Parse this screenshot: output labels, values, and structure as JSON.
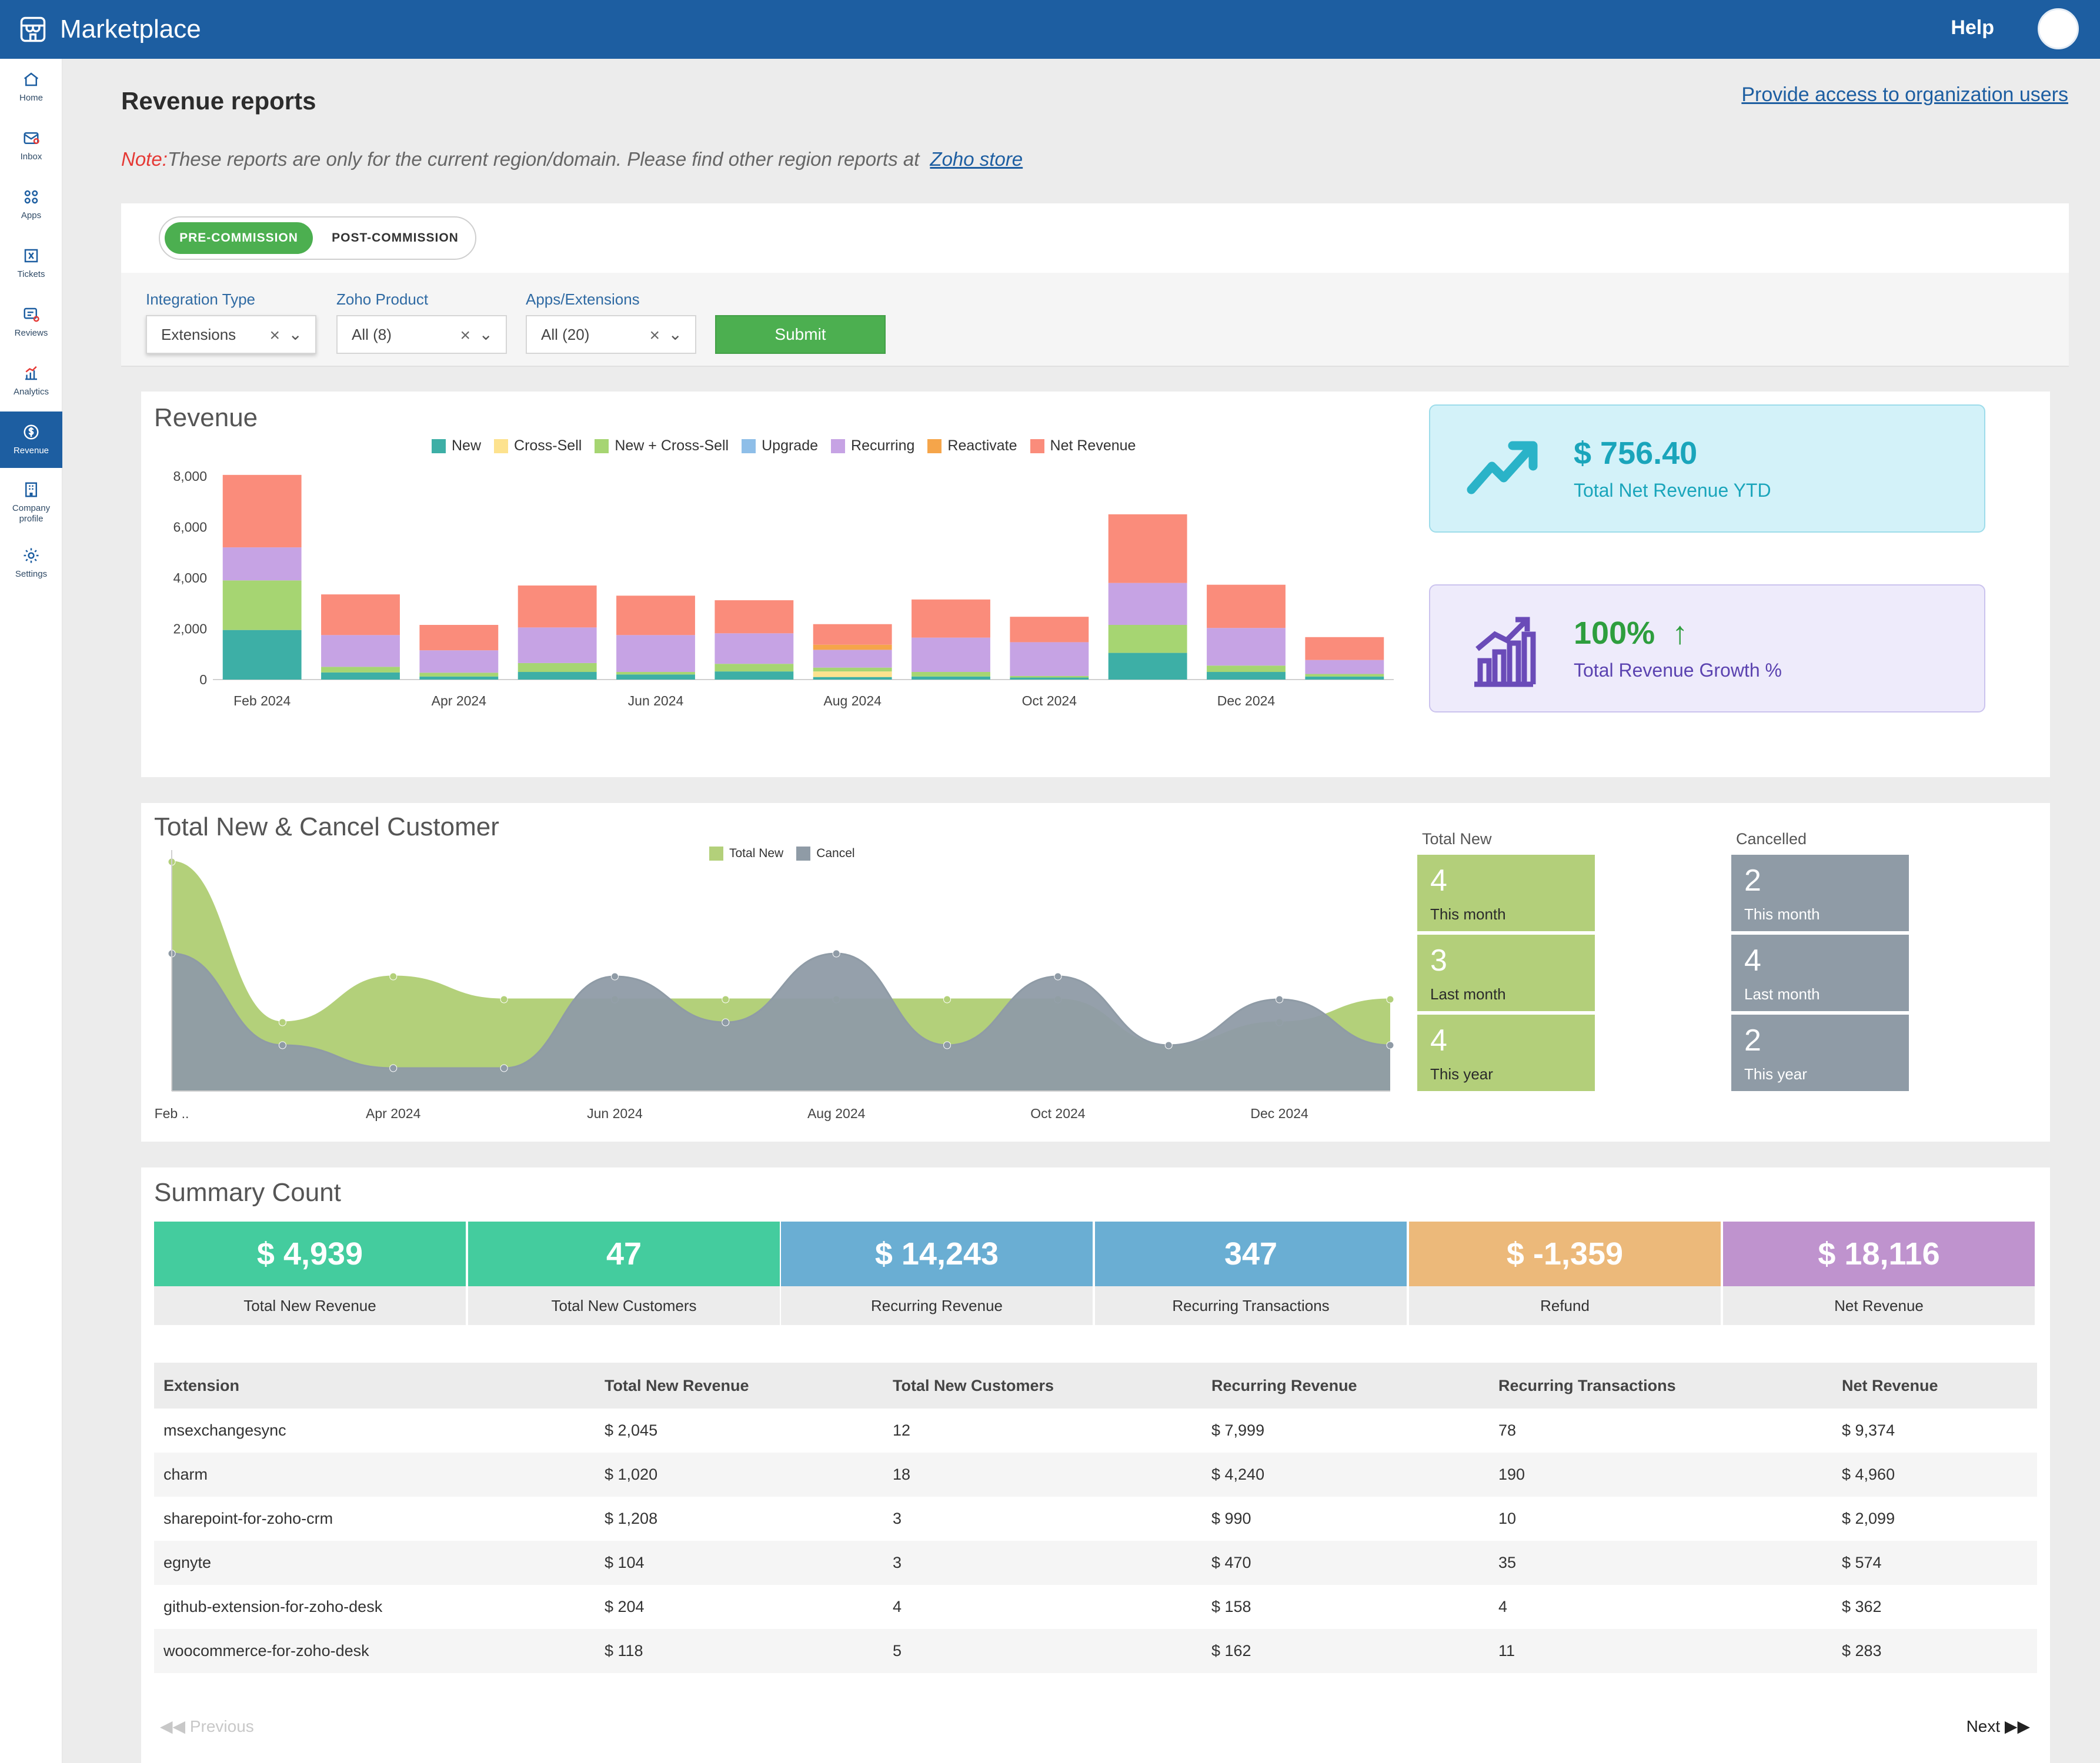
{
  "topbar": {
    "app_name": "Marketplace",
    "help": "Help"
  },
  "sidebar": {
    "items": [
      {
        "label": "Home",
        "icon": "home-icon"
      },
      {
        "label": "Inbox",
        "icon": "inbox-icon"
      },
      {
        "label": "Apps",
        "icon": "apps-icon"
      },
      {
        "label": "Tickets",
        "icon": "tickets-icon"
      },
      {
        "label": "Reviews",
        "icon": "reviews-icon"
      },
      {
        "label": "Analytics",
        "icon": "analytics-icon"
      },
      {
        "label": "Revenue",
        "icon": "revenue-icon",
        "active": true
      },
      {
        "label": "Company profile",
        "icon": "company-icon"
      },
      {
        "label": "Settings",
        "icon": "gear-icon"
      }
    ]
  },
  "header": {
    "title": "Revenue reports",
    "access_link": "Provide access to organization users",
    "note_label": "Note:",
    "note_text": "These reports are only for the current region/domain. Please find other region reports at",
    "store_link": "Zoho store"
  },
  "commission_toggle": {
    "active": "PRE-COMMISSION",
    "inactive": "POST-COMMISSION"
  },
  "filters": {
    "integration_type": {
      "label": "Integration Type",
      "value": "Extensions"
    },
    "zoho_product": {
      "label": "Zoho Product",
      "value": "All (8)"
    },
    "apps_extensions": {
      "label": "Apps/Extensions",
      "value": "All (20)"
    },
    "submit": "Submit"
  },
  "revenue_panel": {
    "title": "Revenue",
    "kpi_net": {
      "value": "$ 756.40",
      "label": "Total Net Revenue YTD"
    },
    "kpi_growth": {
      "value": "100%",
      "label": "Total Revenue Growth %"
    }
  },
  "customer_panel": {
    "title": "Total New & Cancel Customer",
    "total_new_heading": "Total New",
    "cancelled_heading": "Cancelled",
    "total_new": [
      {
        "value": "4",
        "label": "This month"
      },
      {
        "value": "3",
        "label": "Last month"
      },
      {
        "value": "4",
        "label": "This year"
      }
    ],
    "cancelled": [
      {
        "value": "2",
        "label": "This month"
      },
      {
        "value": "4",
        "label": "Last month"
      },
      {
        "value": "2",
        "label": "This year"
      }
    ]
  },
  "summary": {
    "title": "Summary Count",
    "boxes": [
      {
        "value": "$ 4,939",
        "label": "Total New Revenue",
        "color": "#44cc9e"
      },
      {
        "value": "47",
        "label": "Total New Customers",
        "color": "#44cc9e"
      },
      {
        "value": "$ 14,243",
        "label": "Recurring Revenue",
        "color": "#6aaed3"
      },
      {
        "value": "347",
        "label": "Recurring Transactions",
        "color": "#6aaed3"
      },
      {
        "value": "$ -1,359",
        "label": "Refund",
        "color": "#ecb97a"
      },
      {
        "value": "$ 18,116",
        "label": "Net Revenue",
        "color": "#bf93ce"
      }
    ],
    "table": {
      "headers": [
        "Extension",
        "Total New Revenue",
        "Total New Customers",
        "Recurring Revenue",
        "Recurring Transactions",
        "Net Revenue"
      ],
      "rows": [
        [
          "msexchangesync",
          "$ 2,045",
          "12",
          "$ 7,999",
          "78",
          "$ 9,374"
        ],
        [
          "charm",
          "$ 1,020",
          "18",
          "$ 4,240",
          "190",
          "$ 4,960"
        ],
        [
          "sharepoint-for-zoho-crm",
          "$ 1,208",
          "3",
          "$ 990",
          "10",
          "$ 2,099"
        ],
        [
          "egnyte",
          "$ 104",
          "3",
          "$ 470",
          "35",
          "$ 574"
        ],
        [
          "github-extension-for-zoho-desk",
          "$ 204",
          "4",
          "$ 158",
          "4",
          "$ 362"
        ],
        [
          "woocommerce-for-zoho-desk",
          "$ 118",
          "5",
          "$ 162",
          "11",
          "$ 283"
        ]
      ]
    },
    "pager": {
      "previous": "Previous",
      "next": "Next"
    }
  },
  "chart_data": [
    {
      "type": "bar",
      "stacked": true,
      "categories": [
        "Feb 2024",
        "Mar 2024",
        "Apr 2024",
        "May 2024",
        "Jun 2024",
        "Jul 2024",
        "Aug 2024",
        "Sep 2024",
        "Oct 2024",
        "Nov 2024",
        "Dec 2024",
        "Jan 2025"
      ],
      "tick_labels": [
        "Feb 2024",
        "Apr 2024",
        "Jun 2024",
        "Aug 2024",
        "Oct 2024",
        "Dec 2024"
      ],
      "y_ticks": [
        "0",
        "2,000",
        "4,000",
        "6,000",
        "8,000"
      ],
      "ylim": [
        0,
        8000
      ],
      "series": [
        {
          "name": "New",
          "color": "#3dafa6",
          "values": [
            1950,
            280,
            120,
            300,
            200,
            320,
            100,
            120,
            80,
            1050,
            300,
            120
          ]
        },
        {
          "name": "Cross-Sell",
          "color": "#fde28e",
          "values": [
            0,
            0,
            0,
            0,
            0,
            0,
            220,
            0,
            0,
            0,
            0,
            0
          ]
        },
        {
          "name": "New + Cross-Sell",
          "color": "#a6d572",
          "values": [
            1950,
            220,
            150,
            350,
            100,
            300,
            150,
            180,
            60,
            1100,
            250,
            100
          ]
        },
        {
          "name": "Upgrade",
          "color": "#8ebee8",
          "values": [
            0,
            0,
            0,
            0,
            0,
            0,
            0,
            0,
            0,
            0,
            0,
            0
          ]
        },
        {
          "name": "Recurring",
          "color": "#c6a3e4",
          "values": [
            1300,
            1250,
            880,
            1400,
            1450,
            1200,
            700,
            1350,
            1330,
            1650,
            1480,
            550
          ]
        },
        {
          "name": "Reactivate",
          "color": "#f5a54a",
          "values": [
            0,
            0,
            0,
            0,
            0,
            0,
            200,
            0,
            0,
            0,
            0,
            0
          ]
        },
        {
          "name": "Net Revenue",
          "color": "#fa8c7b",
          "values": [
            2850,
            1600,
            1000,
            1650,
            1550,
            1300,
            810,
            1500,
            1000,
            2700,
            1700,
            900
          ]
        }
      ]
    },
    {
      "type": "area",
      "categories": [
        "Feb 2024",
        "Mar 2024",
        "Apr 2024",
        "May 2024",
        "Jun 2024",
        "Jul 2024",
        "Aug 2024",
        "Sep 2024",
        "Oct 2024",
        "Nov 2024",
        "Dec 2024",
        "Jan 2025"
      ],
      "tick_labels": [
        "Feb ..",
        "Apr 2024",
        "Jun 2024",
        "Aug 2024",
        "Oct 2024",
        "Dec 2024"
      ],
      "ylim": [
        0,
        10
      ],
      "series": [
        {
          "name": "Total New",
          "color": "#b3d07a",
          "values": [
            10,
            3,
            5,
            4,
            4,
            4,
            4,
            4,
            4,
            2,
            3,
            4
          ]
        },
        {
          "name": "Cancel",
          "color": "#8f9ba6",
          "values": [
            6,
            2,
            1,
            1,
            5,
            3,
            6,
            2,
            5,
            2,
            4,
            2
          ]
        }
      ]
    }
  ]
}
